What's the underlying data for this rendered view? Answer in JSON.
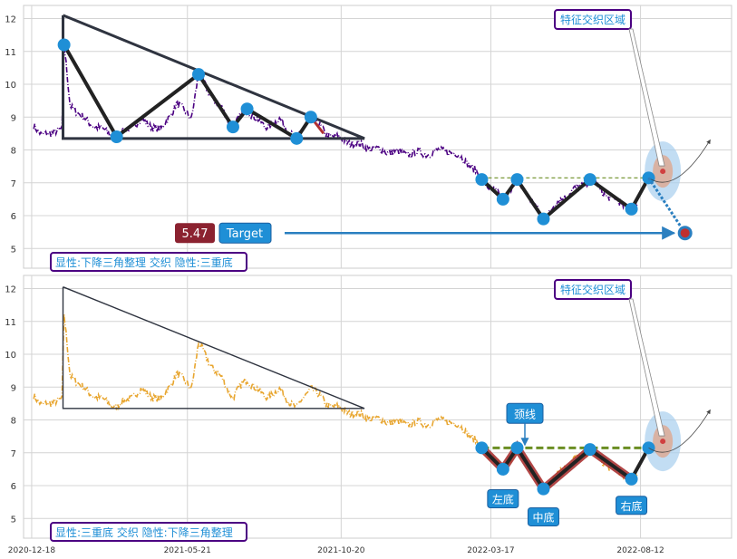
{
  "chart_data": [
    {
      "type": "line",
      "ylim": [
        4.4,
        12.4
      ],
      "yticks": [
        5,
        6,
        7,
        8,
        9,
        10,
        11,
        12
      ],
      "grid": true,
      "price_color": "#4b0082",
      "pattern_color": "#2f3440",
      "marker_color": "#1f8fd6",
      "annotation_box": {
        "text": "特征交织区域",
        "color": "#4b0082"
      },
      "target_label": {
        "value": "5.47",
        "label": "Target"
      },
      "summary": {
        "text": "显性:下降三角整理 交织 隐性:三重底"
      },
      "triangle": {
        "apex": [
          "2021-01-18",
          12.1
        ],
        "end": [
          "2021-11-12",
          8.35
        ],
        "base": 8.35
      },
      "pivots": [
        {
          "date": "2021-01-19",
          "value": 11.2
        },
        {
          "date": "2021-03-12",
          "value": 8.4
        },
        {
          "date": "2021-06-01",
          "value": 10.3
        },
        {
          "date": "2021-07-05",
          "value": 8.7
        },
        {
          "date": "2021-07-19",
          "value": 9.25
        },
        {
          "date": "2021-09-06",
          "value": 8.35
        },
        {
          "date": "2021-09-20",
          "value": 9.0
        }
      ],
      "neckline": 7.15,
      "bottoms": [
        {
          "date": "2022-03-08",
          "value": 7.1
        },
        {
          "date": "2022-03-29",
          "value": 6.5
        },
        {
          "date": "2022-04-12",
          "value": 7.1
        },
        {
          "date": "2022-05-08",
          "value": 5.9
        },
        {
          "date": "2022-06-23",
          "value": 7.1
        },
        {
          "date": "2022-08-03",
          "value": 6.2
        },
        {
          "date": "2022-08-20",
          "value": 7.15
        }
      ],
      "target_point": {
        "date": "2022-09-25",
        "value": 5.47
      }
    },
    {
      "type": "line",
      "ylim": [
        4.4,
        12.4
      ],
      "yticks": [
        5,
        6,
        7,
        8,
        9,
        10,
        11,
        12
      ],
      "grid": true,
      "price_color": "#e8a630",
      "pattern_color": "#2f3440",
      "marker_color": "#1f8fd6",
      "annotation_box": {
        "text": "特征交织区域",
        "color": "#4b0082"
      },
      "summary": {
        "text": "显性:三重底 交织 隐性:下降三角整理"
      },
      "triangle": {
        "apex": [
          "2021-01-18",
          12.05
        ],
        "end": [
          "2021-11-12",
          8.35
        ],
        "base": 8.35
      },
      "neckline": 7.15,
      "neck_label": "颈线",
      "bottom_labels": [
        "左底",
        "中底",
        "右底"
      ],
      "bottoms": [
        {
          "date": "2022-03-08",
          "value": 7.15
        },
        {
          "date": "2022-03-29",
          "value": 6.5
        },
        {
          "date": "2022-04-12",
          "value": 7.15
        },
        {
          "date": "2022-05-08",
          "value": 5.9
        },
        {
          "date": "2022-06-23",
          "value": 7.1
        },
        {
          "date": "2022-08-03",
          "value": 6.2
        },
        {
          "date": "2022-08-20",
          "value": 7.15
        }
      ]
    }
  ],
  "x_axis": {
    "ticks": [
      "2020-12-18",
      "2021-05-21",
      "2021-10-20",
      "2022-03-17",
      "2022-08-12"
    ],
    "start": "2020-12-10",
    "end": "2022-11-10"
  }
}
